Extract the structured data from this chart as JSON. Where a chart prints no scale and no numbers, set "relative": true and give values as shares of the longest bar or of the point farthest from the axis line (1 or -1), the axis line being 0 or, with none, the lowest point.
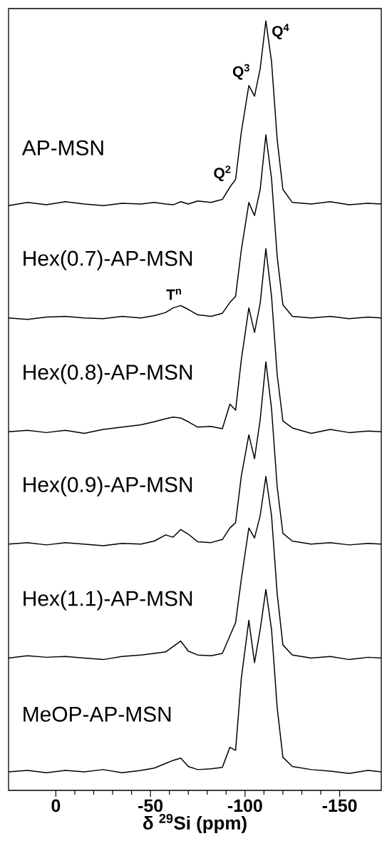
{
  "chart_data": {
    "type": "line",
    "relative": true,
    "xlabel": "δ $^{29}$Si (ppm)",
    "x": [
      25,
      15,
      5,
      -5,
      -15,
      -25,
      -35,
      -45,
      -52,
      -58,
      -62,
      -66,
      -70,
      -75,
      -82,
      -88,
      -92,
      -95,
      -98,
      -102,
      -105,
      -108,
      -111,
      -114,
      -117,
      -120,
      -125,
      -135,
      -145,
      -155,
      -165,
      -172
    ],
    "xlim": [
      25,
      -172
    ],
    "xticks": [
      0,
      -50,
      -100,
      -150
    ],
    "series": [
      {
        "name": "AP-MSN",
        "color": "#000000",
        "values": [
          0.76,
          0.764,
          0.761,
          0.765,
          0.762,
          0.76,
          0.763,
          0.762,
          0.764,
          0.762,
          0.761,
          0.765,
          0.762,
          0.766,
          0.764,
          0.768,
          0.784,
          0.794,
          0.855,
          0.916,
          0.902,
          0.938,
          1.0,
          0.947,
          0.845,
          0.781,
          0.764,
          0.762,
          0.765,
          0.761,
          0.763,
          0.762
        ]
      },
      {
        "name": "Hex(0.7)-AP-MSN",
        "color": "#000000",
        "values": [
          0.614,
          0.612,
          0.615,
          0.616,
          0.614,
          0.613,
          0.616,
          0.614,
          0.617,
          0.621,
          0.627,
          0.63,
          0.625,
          0.618,
          0.616,
          0.62,
          0.634,
          0.642,
          0.702,
          0.764,
          0.747,
          0.781,
          0.852,
          0.795,
          0.693,
          0.631,
          0.616,
          0.614,
          0.616,
          0.613,
          0.615,
          0.614
        ]
      },
      {
        "name": "Hex(0.8)-AP-MSN",
        "color": "#000000",
        "values": [
          0.466,
          0.468,
          0.465,
          0.468,
          0.464,
          0.469,
          0.472,
          0.475,
          0.479,
          0.483,
          0.485,
          0.484,
          0.479,
          0.472,
          0.473,
          0.47,
          0.502,
          0.494,
          0.559,
          0.627,
          0.595,
          0.633,
          0.704,
          0.642,
          0.54,
          0.48,
          0.471,
          0.464,
          0.469,
          0.465,
          0.467,
          0.466
        ]
      },
      {
        "name": "Hex(0.9)-AP-MSN",
        "color": "#000000",
        "values": [
          0.32,
          0.322,
          0.319,
          0.322,
          0.32,
          0.318,
          0.321,
          0.32,
          0.324,
          0.332,
          0.329,
          0.339,
          0.333,
          0.323,
          0.322,
          0.326,
          0.341,
          0.348,
          0.408,
          0.462,
          0.431,
          0.482,
          0.557,
          0.496,
          0.394,
          0.334,
          0.324,
          0.32,
          0.322,
          0.319,
          0.321,
          0.32
        ]
      },
      {
        "name": "Hex(1.1)-AP-MSN",
        "color": "#000000",
        "values": [
          0.172,
          0.175,
          0.173,
          0.174,
          0.172,
          0.17,
          0.174,
          0.176,
          0.178,
          0.18,
          0.187,
          0.194,
          0.181,
          0.176,
          0.175,
          0.178,
          0.201,
          0.218,
          0.274,
          0.341,
          0.328,
          0.357,
          0.408,
          0.357,
          0.255,
          0.189,
          0.176,
          0.172,
          0.174,
          0.17,
          0.173,
          0.172
        ]
      },
      {
        "name": "MeOP-AP-MSN",
        "color": "#000000",
        "values": [
          0.024,
          0.026,
          0.023,
          0.026,
          0.024,
          0.027,
          0.023,
          0.026,
          0.029,
          0.035,
          0.039,
          0.042,
          0.031,
          0.027,
          0.028,
          0.03,
          0.056,
          0.052,
          0.145,
          0.221,
          0.166,
          0.209,
          0.261,
          0.209,
          0.107,
          0.043,
          0.031,
          0.027,
          0.025,
          0.022,
          0.026,
          0.024
        ]
      }
    ],
    "annotations": [
      {
        "text": "Q$^{4}$",
        "x": -111,
        "y": 1.0
      },
      {
        "text": "Q$^{3}$",
        "x": -102,
        "y": 0.916
      },
      {
        "text": "Q$^{2}$",
        "x": -92,
        "y": 0.784
      },
      {
        "text": "T$^{n}$",
        "x": -66,
        "y": 0.63
      }
    ]
  }
}
